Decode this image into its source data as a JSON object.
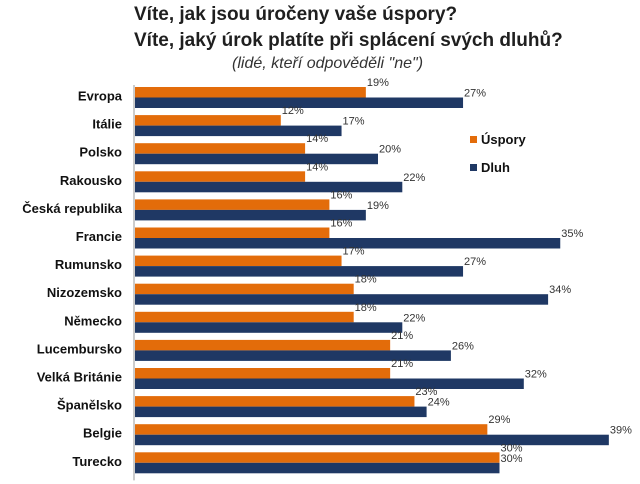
{
  "titles": {
    "line1": "Víte, jak jsou úročeny vaše úspory?",
    "line2": "Víte, jaký úrok platíte při splácení svých dluhů?",
    "subtitle": "(lidé, kteří odpověděli \"ne\")"
  },
  "chart_data": {
    "type": "bar",
    "orientation": "horizontal",
    "categories": [
      "Evropa",
      "Itálie",
      "Polsko",
      "Rakousko",
      "Česká republika",
      "Francie",
      "Rumunsko",
      "Nizozemsko",
      "Německo",
      "Lucembursko",
      "Velká Británie",
      "Španělsko",
      "Belgie",
      "Turecko"
    ],
    "series": [
      {
        "name": "Úspory",
        "color": "#e36c0a",
        "values": [
          19,
          12,
          14,
          14,
          16,
          16,
          17,
          18,
          18,
          21,
          21,
          23,
          29,
          30
        ]
      },
      {
        "name": "Dluh",
        "color": "#1f3864",
        "values": [
          27,
          17,
          20,
          22,
          19,
          35,
          27,
          34,
          22,
          26,
          32,
          24,
          39,
          30
        ]
      }
    ],
    "value_suffix": "%",
    "xlim": [
      0,
      40
    ],
    "grid": false,
    "legend_position": "right"
  }
}
